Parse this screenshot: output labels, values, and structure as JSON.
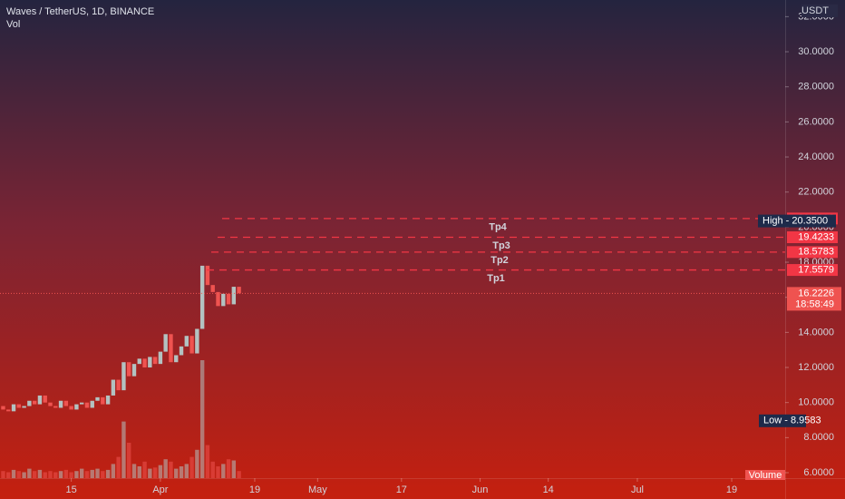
{
  "chart_data": {
    "type": "candlestick",
    "title": "Waves / TetherUS, 1D, BINANCE",
    "subtitle": "Vol",
    "currency": "USDT",
    "volume_label": "Volume",
    "x": [
      0,
      1,
      2,
      3,
      4,
      5,
      6,
      7,
      8,
      9,
      10,
      11,
      12,
      13,
      14,
      15,
      16,
      17,
      18,
      19,
      20,
      21,
      22,
      23,
      24,
      25,
      26,
      27,
      28,
      29,
      30,
      31,
      32,
      33,
      34,
      35,
      36,
      37,
      38,
      39,
      40,
      41,
      42,
      43,
      44,
      45
    ],
    "open": [
      9.8,
      9.6,
      9.5,
      9.9,
      9.7,
      9.8,
      10.1,
      9.9,
      10.4,
      10.0,
      9.8,
      9.7,
      10.1,
      9.8,
      9.6,
      9.9,
      10.0,
      9.7,
      10.1,
      10.3,
      9.9,
      10.4,
      11.3,
      10.7,
      12.3,
      11.5,
      12.2,
      12.5,
      12.0,
      12.6,
      12.2,
      12.9,
      13.9,
      12.3,
      12.7,
      13.2,
      13.8,
      12.8,
      14.2,
      17.8,
      16.7,
      16.3,
      15.5,
      16.2,
      15.6,
      16.6
    ],
    "high": {
      "label": "High - 20.3500",
      "value": 20.35
    },
    "low": {
      "label": "Low - 8.9583",
      "value": 8.9583
    },
    "close": [
      9.6,
      9.5,
      9.9,
      9.7,
      9.8,
      10.1,
      9.9,
      10.4,
      10.0,
      9.8,
      9.7,
      10.1,
      9.8,
      9.6,
      9.9,
      10.0,
      9.7,
      10.1,
      10.3,
      9.9,
      10.4,
      11.3,
      10.7,
      12.3,
      11.5,
      12.2,
      12.5,
      12.0,
      12.6,
      12.2,
      12.9,
      13.9,
      12.3,
      12.7,
      13.2,
      13.8,
      12.8,
      14.2,
      17.8,
      16.7,
      16.3,
      15.5,
      16.2,
      15.6,
      16.6,
      16.2226
    ],
    "volume": [
      6,
      5,
      7,
      6,
      5,
      8,
      6,
      7,
      5,
      6,
      5,
      6,
      7,
      5,
      6,
      8,
      6,
      7,
      8,
      6,
      7,
      12,
      18,
      48,
      30,
      12,
      10,
      14,
      8,
      9,
      11,
      16,
      14,
      8,
      10,
      12,
      18,
      24,
      100,
      28,
      14,
      10,
      12,
      16,
      15,
      6
    ],
    "vlim": [
      0,
      100
    ],
    "up_color": "#b3c2c1",
    "down_color": "#ef5350",
    "xlim": [
      -0.6,
      149.2
    ],
    "xticks": [
      {
        "value": 13,
        "label": "15"
      },
      {
        "value": 30,
        "label": "Apr"
      },
      {
        "value": 48,
        "label": "19"
      },
      {
        "value": 60,
        "label": "May"
      },
      {
        "value": 76,
        "label": "17"
      },
      {
        "value": 91,
        "label": "Jun"
      },
      {
        "value": 104,
        "label": "14"
      },
      {
        "value": 121,
        "label": "Jul"
      },
      {
        "value": 139,
        "label": "19"
      }
    ],
    "ylim": [
      5.69,
      32.95
    ],
    "yticks": [
      {
        "value": 6,
        "label": "6.0000"
      },
      {
        "value": 8,
        "label": "8.0000"
      },
      {
        "value": 10,
        "label": "10.0000"
      },
      {
        "value": 12,
        "label": "12.0000"
      },
      {
        "value": 14,
        "label": "14.0000"
      },
      {
        "value": 16,
        "label": "16.0000"
      },
      {
        "value": 18,
        "label": "18.0000"
      },
      {
        "value": 20,
        "label": "20.0000"
      },
      {
        "value": 22,
        "label": "22.0000"
      },
      {
        "value": 24,
        "label": "24.0000"
      },
      {
        "value": 26,
        "label": "26.0000"
      },
      {
        "value": 28,
        "label": "28.0000"
      },
      {
        "value": 30,
        "label": "30.0000"
      },
      {
        "value": 32,
        "label": "32.0000"
      }
    ],
    "levels": [
      {
        "name": "Tp4",
        "value": 20.4916
      },
      {
        "name": "Tp3",
        "value": 19.4233
      },
      {
        "name": "Tp2",
        "value": 18.5783
      },
      {
        "name": "Tp1",
        "value": 17.5579
      }
    ],
    "level_color": "#f23645",
    "last": {
      "value": 16.2226,
      "countdown": "18:58:49"
    }
  }
}
